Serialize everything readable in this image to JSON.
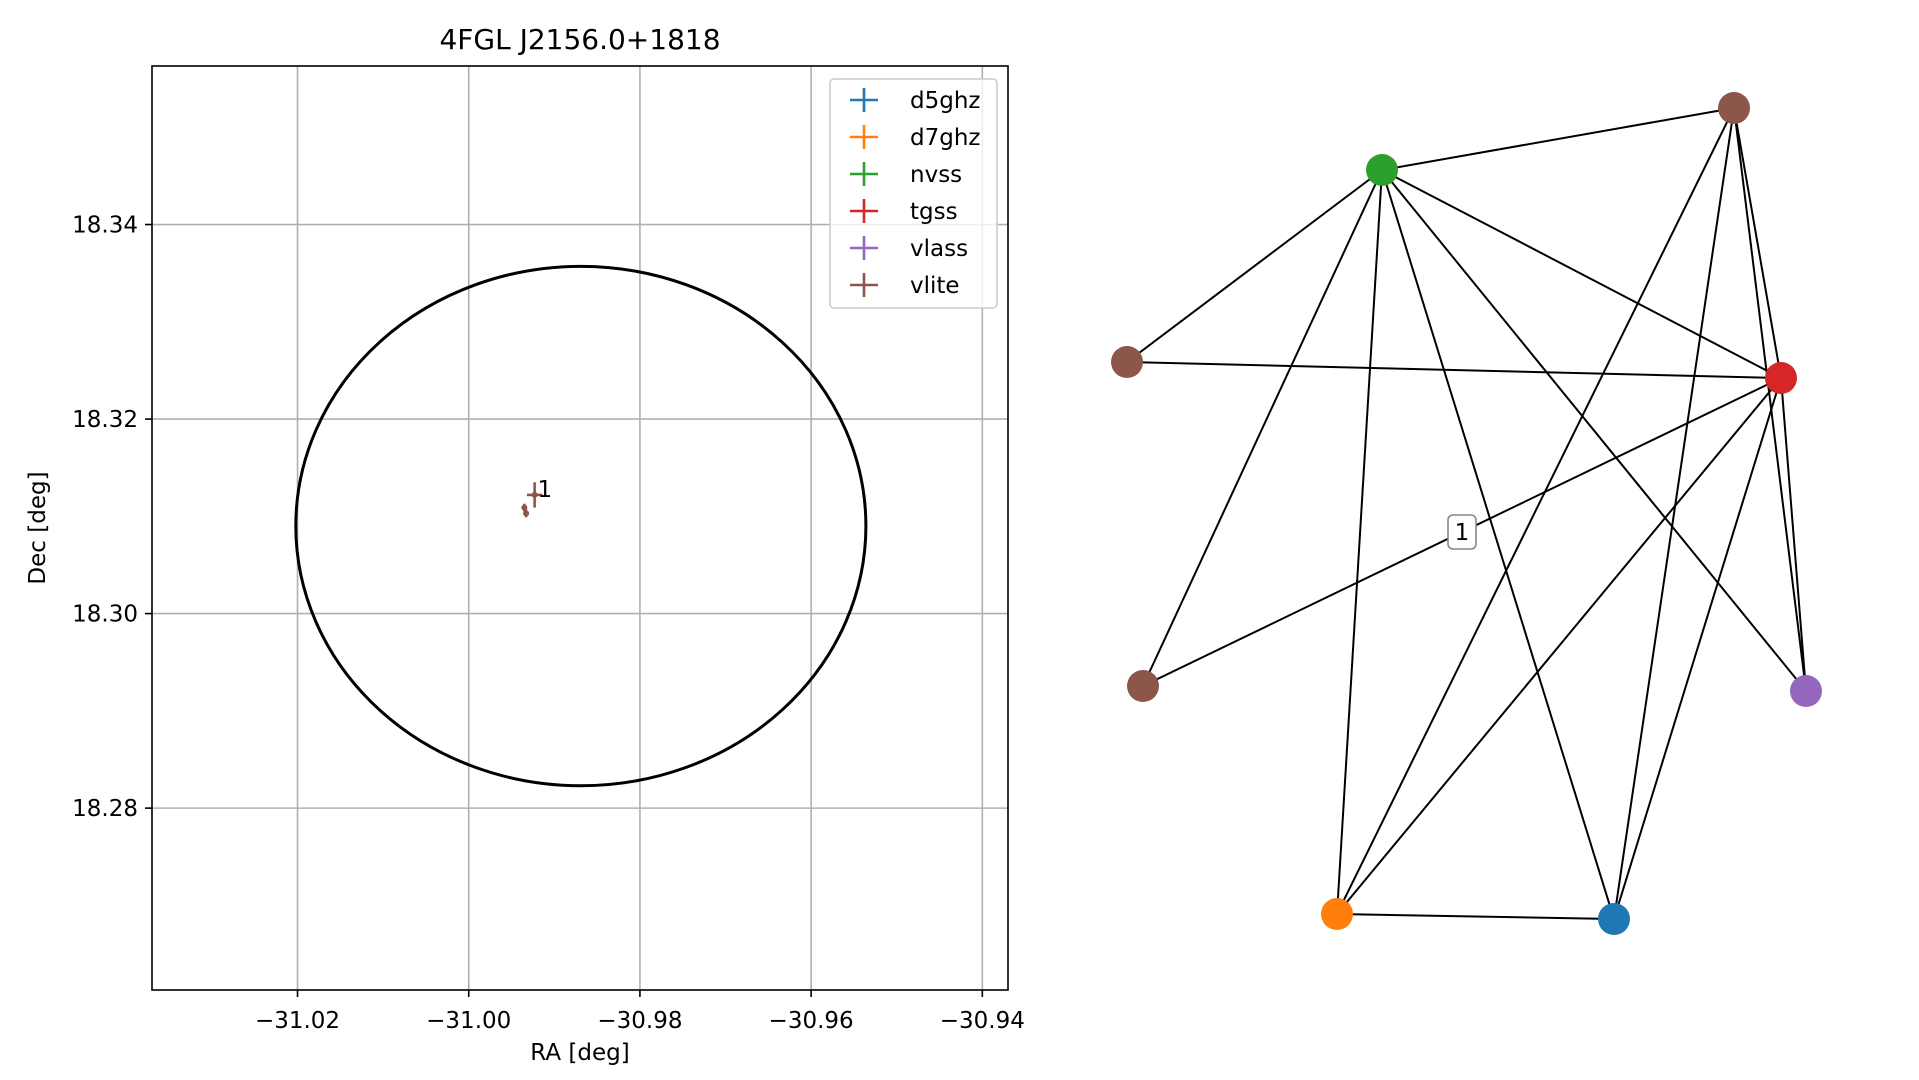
{
  "chart_data": [
    {
      "type": "scatter",
      "title": "4FGL J2156.0+1818",
      "xlabel": "RA [deg]",
      "ylabel": "Dec [deg]",
      "xlim": [
        -31.037,
        -30.937
      ],
      "ylim": [
        18.2613,
        18.3563
      ],
      "xticks": [
        -31.02,
        -31.0,
        -30.98,
        -30.96,
        -30.94
      ],
      "xtick_labels": [
        "−31.02",
        "−31.00",
        "−30.98",
        "−30.96",
        "−30.94"
      ],
      "yticks": [
        18.28,
        18.3,
        18.32,
        18.34
      ],
      "ytick_labels": [
        "18.28",
        "18.30",
        "18.32",
        "18.34"
      ],
      "grid": true,
      "legend_position": "top-right",
      "series": [
        {
          "name": "d5ghz",
          "color": "#1f77b4",
          "points": []
        },
        {
          "name": "d7ghz",
          "color": "#ff7f0e",
          "points": []
        },
        {
          "name": "nvss",
          "color": "#2ca02c",
          "points": []
        },
        {
          "name": "tgss",
          "color": "#d62728",
          "points": []
        },
        {
          "name": "vlass",
          "color": "#9467bd",
          "points": []
        },
        {
          "name": "vlite",
          "color": "#8c564b",
          "points": [
            {
              "x": -30.9923,
              "y": 18.3122,
              "xerr": 0.0009,
              "yerr": 0.0013
            },
            {
              "x": -30.9935,
              "y": 18.3109,
              "xerr": 0.0003,
              "yerr": 0.0004
            },
            {
              "x": -30.9933,
              "y": 18.3103,
              "xerr": 0.0003,
              "yerr": 0.0004
            }
          ]
        }
      ],
      "annotations": [
        {
          "text": "1",
          "x": -30.9922,
          "y": 18.3124
        }
      ],
      "error_ellipse": {
        "center_ra": -30.9869,
        "center_dec": 18.309,
        "semi_axis_ra": 0.0333,
        "semi_axis_dec": 0.0267,
        "color": "#000000"
      }
    },
    {
      "type": "network",
      "nodes": [
        {
          "id": "n0",
          "color": "#2ca02c"
        },
        {
          "id": "n1",
          "color": "#8c564b"
        },
        {
          "id": "n2",
          "color": "#8c564b"
        },
        {
          "id": "n3",
          "color": "#d62728"
        },
        {
          "id": "n4",
          "color": "#8c564b"
        },
        {
          "id": "n5",
          "color": "#9467bd"
        },
        {
          "id": "n6",
          "color": "#ff7f0e"
        },
        {
          "id": "n7",
          "color": "#1f77b4"
        }
      ],
      "edges": [
        [
          "n0",
          "n1"
        ],
        [
          "n0",
          "n2"
        ],
        [
          "n0",
          "n3"
        ],
        [
          "n0",
          "n4"
        ],
        [
          "n0",
          "n5"
        ],
        [
          "n0",
          "n6"
        ],
        [
          "n0",
          "n7"
        ],
        [
          "n1",
          "n3"
        ],
        [
          "n1",
          "n5"
        ],
        [
          "n1",
          "n6"
        ],
        [
          "n1",
          "n7"
        ],
        [
          "n2",
          "n3"
        ],
        [
          "n3",
          "n4"
        ],
        [
          "n3",
          "n5"
        ],
        [
          "n3",
          "n6"
        ],
        [
          "n3",
          "n7"
        ],
        [
          "n6",
          "n7"
        ]
      ],
      "edge_labels": [
        {
          "text": "1",
          "edge": [
            "n3",
            "n4"
          ]
        }
      ]
    }
  ]
}
